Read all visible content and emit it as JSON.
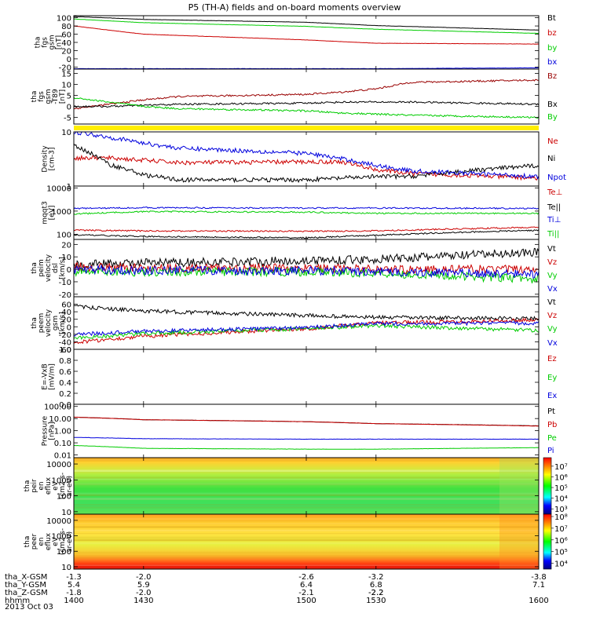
{
  "title": "P5 (TH-A) fields and on-board moments overview",
  "date_label": "2013 Oct 03",
  "x_axis": {
    "rows": [
      {
        "name": "tha_X-GSM",
        "values": [
          "-1.3",
          "-2.0",
          "-2.6",
          "-3.2",
          "-3.8"
        ]
      },
      {
        "name": "tha_Y-GSM",
        "values": [
          "5.4",
          "5.9",
          "6.4",
          "6.8",
          "7.1"
        ]
      },
      {
        "name": "tha_Z-GSM",
        "values": [
          "-1.8",
          "-2.0",
          "-2.1",
          "-2.2",
          "-2.2"
        ]
      },
      {
        "name": "hhmm",
        "values": [
          "1400",
          "1430",
          "1500",
          "1530",
          "1600"
        ]
      }
    ]
  },
  "colors": {
    "black": "#000000",
    "red": "#cc0000",
    "dark_red": "#990000",
    "green": "#00cc00",
    "blue": "#0000dd",
    "yellow": "#ffee00"
  },
  "chart_data": [
    {
      "type": "line",
      "key": "fgm",
      "ylabel": [
        "tha",
        "fgs",
        "gsm",
        "[nT]"
      ],
      "ylim": [
        -25,
        105
      ],
      "yticks": [
        "100",
        "80",
        "60",
        "40",
        "20",
        "0",
        "-20"
      ],
      "ytick_values": [
        100,
        80,
        60,
        40,
        20,
        0,
        -20
      ],
      "x": [
        1400,
        1430,
        1500,
        1530,
        1600
      ],
      "series": [
        {
          "name": "Bt",
          "color": "#000000",
          "values": [
            103,
            96,
            89,
            81,
            70
          ]
        },
        {
          "name": "bz",
          "color": "#cc0000",
          "values": [
            80,
            60,
            46,
            38,
            36
          ]
        },
        {
          "name": "by",
          "color": "#00cc00",
          "values": [
            97,
            88,
            79,
            72,
            62
          ]
        },
        {
          "name": "bx",
          "color": "#0000dd",
          "values": [
            -24,
            -24,
            -24,
            -24,
            -22
          ]
        }
      ]
    },
    {
      "type": "line",
      "key": "fgs_dip",
      "ylabel": [
        "tha",
        "fgs",
        "gsm",
        "-T89",
        "[nT]"
      ],
      "ylim": [
        -8,
        17
      ],
      "yticks": [
        "15",
        "10",
        "5",
        "0",
        "-5"
      ],
      "ytick_values": [
        15,
        10,
        5,
        0,
        -5
      ],
      "x": [
        1400,
        1415,
        1430,
        1445,
        1500,
        1515,
        1530,
        1545,
        1600
      ],
      "series": [
        {
          "name": "Bz",
          "color": "#990000",
          "values": [
            -1,
            1,
            3,
            4.5,
            5.5,
            6.5,
            8,
            11,
            12
          ]
        },
        {
          "name": "Bx",
          "color": "#000000",
          "values": [
            0,
            0,
            0.5,
            1,
            1.5,
            2,
            2,
            2,
            1
          ]
        },
        {
          "name": "By",
          "color": "#00cc00",
          "values": [
            4,
            2,
            0,
            -1,
            -2,
            -3,
            -3.5,
            -4,
            -5
          ]
        }
      ]
    },
    {
      "type": "line",
      "key": "density",
      "ylabel": [
        "Density",
        "[cm-3]"
      ],
      "ylim": [
        1,
        10
      ],
      "log": true,
      "yticks": [
        "10",
        "1"
      ],
      "ytick_values": [
        10,
        1
      ],
      "x": [
        1400,
        1415,
        1430,
        1445,
        1500,
        1515,
        1530,
        1545,
        1600
      ],
      "series": [
        {
          "name": "Ne",
          "color": "#cc0000",
          "values": [
            3.3,
            3.3,
            3.0,
            2.7,
            2.8,
            2.8,
            2.0,
            1.7,
            1.4
          ]
        },
        {
          "name": "Ni",
          "color": "#000000",
          "values": [
            5.5,
            2.5,
            1.6,
            1.3,
            1.3,
            1.4,
            1.5,
            1.5,
            2.4
          ]
        },
        {
          "name": "Npot",
          "color": "#0000dd",
          "values": [
            10,
            8,
            6.2,
            5.0,
            4.0,
            3.2,
            2.4,
            1.9,
            1.5
          ]
        }
      ]
    },
    {
      "type": "line",
      "key": "temp",
      "ylabel": [
        "mqqt3",
        "[eV]"
      ],
      "ylim": [
        60,
        12000
      ],
      "log": true,
      "yticks": [
        "10000",
        "1000",
        "100"
      ],
      "ytick_values": [
        10000,
        1000,
        100
      ],
      "x": [
        1400,
        1430,
        1500,
        1530,
        1600
      ],
      "series": [
        {
          "name": "Te⊥",
          "color": "#cc0000",
          "values": [
            150,
            140,
            135,
            140,
            200
          ]
        },
        {
          "name": "Te||",
          "color": "#000000",
          "values": [
            95,
            80,
            70,
            90,
            150
          ]
        },
        {
          "name": "Ti⊥",
          "color": "#0000dd",
          "values": [
            1300,
            1400,
            1350,
            1350,
            1300
          ]
        },
        {
          "name": "Ti||",
          "color": "#00cc00",
          "values": [
            750,
            950,
            900,
            800,
            800
          ]
        }
      ]
    },
    {
      "type": "line",
      "key": "vel_dsl",
      "ylabel": [
        "tha",
        "peim",
        "velocity",
        "dsl",
        "[km/s]"
      ],
      "ylim": [
        -22,
        24
      ],
      "yticks": [
        "20",
        "10",
        "0",
        "-10",
        "-20"
      ],
      "ytick_values": [
        20,
        10,
        0,
        -10,
        -20
      ],
      "x": [
        1400,
        1430,
        1500,
        1530,
        1600
      ],
      "series": [
        {
          "name": "Vt",
          "color": "#000000",
          "values": [
            4,
            5,
            7,
            8,
            14
          ]
        },
        {
          "name": "Vz",
          "color": "#cc0000",
          "values": [
            2,
            1,
            1,
            0,
            0
          ]
        },
        {
          "name": "Vy",
          "color": "#00cc00",
          "values": [
            -2,
            -2,
            -2,
            -3,
            -8
          ]
        },
        {
          "name": "Vx",
          "color": "#0000dd",
          "values": [
            0,
            -1,
            -1,
            -2,
            -4
          ]
        }
      ]
    },
    {
      "type": "line",
      "key": "vel_gsm",
      "ylabel": [
        "tha",
        "peem",
        "velocity",
        "gsm",
        "[km/s]"
      ],
      "ylim": [
        -60,
        80
      ],
      "yticks": [
        "60",
        "40",
        "20",
        "0",
        "-20",
        "-40",
        "-60"
      ],
      "ytick_values": [
        60,
        40,
        20,
        0,
        -20,
        -40,
        -60
      ],
      "x": [
        1400,
        1430,
        1500,
        1530,
        1600
      ],
      "series": [
        {
          "name": "Vt",
          "color": "#000000",
          "values": [
            54,
            42,
            30,
            25,
            22
          ]
        },
        {
          "name": "Vz",
          "color": "#cc0000",
          "values": [
            -42,
            -25,
            -5,
            10,
            18
          ]
        },
        {
          "name": "Vy",
          "color": "#00cc00",
          "values": [
            -30,
            -18,
            -5,
            3,
            -10
          ]
        },
        {
          "name": "Vx",
          "color": "#0000dd",
          "values": [
            -20,
            -12,
            -2,
            8,
            10
          ]
        }
      ]
    },
    {
      "type": "line",
      "key": "efield",
      "ylabel": [
        "E=-VxB",
        "[mV/m]"
      ],
      "ylim": [
        0,
        1.0
      ],
      "yticks": [
        "1.0",
        "0.8",
        "0.6",
        "0.4",
        "0.2",
        "0.0"
      ],
      "ytick_values": [
        1.0,
        0.8,
        0.6,
        0.4,
        0.2,
        0.0
      ],
      "x": [],
      "series": [
        {
          "name": "Ez",
          "color": "#cc0000",
          "values": []
        },
        {
          "name": "Ey",
          "color": "#00cc00",
          "values": []
        },
        {
          "name": "Ex",
          "color": "#0000dd",
          "values": []
        }
      ]
    },
    {
      "type": "line",
      "key": "pressure",
      "ylabel": [
        "Pressure",
        "[nPa]"
      ],
      "ylim": [
        0.006,
        150
      ],
      "log": true,
      "yticks": [
        "100.00",
        "10.00",
        "1.00",
        "0.10",
        "0.01"
      ],
      "ytick_values": [
        100,
        10,
        1,
        0.1,
        0.01
      ],
      "x": [
        1400,
        1430,
        1500,
        1530,
        1600
      ],
      "series": [
        {
          "name": "Pt",
          "color": "#000000",
          "values": [
            13,
            8,
            5.5,
            3.8,
            2.5
          ]
        },
        {
          "name": "Pb",
          "color": "#cc0000",
          "values": [
            13,
            8,
            5.5,
            3.8,
            2.4
          ]
        },
        {
          "name": "Pe",
          "color": "#00cc00",
          "values": [
            0.06,
            0.035,
            0.03,
            0.03,
            0.04
          ]
        },
        {
          "name": "Pi",
          "color": "#0000dd",
          "values": [
            0.28,
            0.22,
            0.2,
            0.2,
            0.2
          ]
        }
      ]
    },
    {
      "type": "heatmap",
      "key": "ion_spec",
      "ylabel": [
        "tha",
        "peir",
        "en",
        "eflux",
        "eV",
        "(cm2-s-",
        "sr-eV)"
      ],
      "ylim": [
        7,
        25000
      ],
      "log": true,
      "yticks": [
        "10000",
        "1000",
        "100",
        "10"
      ],
      "ytick_values": [
        10000,
        1000,
        100,
        10
      ],
      "colorbar_ticks": [
        "10⁷",
        "10⁶",
        "10⁵",
        "10⁴",
        "10³"
      ],
      "colorbar_values": [
        7,
        6,
        5,
        4,
        3
      ],
      "colorbar_range": [
        2.5,
        7.8
      ]
    },
    {
      "type": "heatmap",
      "key": "elec_spec",
      "ylabel": [
        "tha",
        "peer",
        "en",
        "eflux",
        "eV",
        "(cm2-s-",
        "sr-eV)"
      ],
      "ylim": [
        7,
        25000
      ],
      "log": true,
      "yticks": [
        "10000",
        "1000",
        "100",
        "10"
      ],
      "ytick_values": [
        10000,
        1000,
        100,
        10
      ],
      "colorbar_ticks": [
        "10⁸",
        "10⁷",
        "10⁶",
        "10⁵",
        "10⁴"
      ],
      "colorbar_values": [
        8,
        7,
        6,
        5,
        4
      ],
      "colorbar_range": [
        3.5,
        8.2
      ]
    }
  ]
}
